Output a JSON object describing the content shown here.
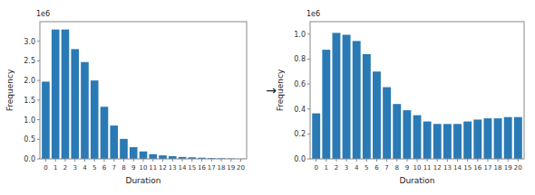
{
  "chart_data": [
    {
      "type": "bar",
      "xlabel": "Duration",
      "ylabel": "Frequency",
      "x": [
        0,
        1,
        2,
        3,
        4,
        5,
        6,
        7,
        8,
        9,
        10,
        11,
        12,
        13,
        14,
        15,
        16,
        17,
        18,
        19,
        20
      ],
      "values": [
        1.97,
        3.3,
        3.3,
        2.8,
        2.47,
        2.0,
        1.33,
        0.85,
        0.51,
        0.3,
        0.19,
        0.12,
        0.09,
        0.07,
        0.05,
        0.04,
        0.03,
        0.02,
        0.015,
        0.01,
        0.005
      ],
      "color": "#2a7ab5",
      "xlim": [
        -0.6,
        20.6
      ],
      "xticks": [
        0,
        1,
        2,
        3,
        4,
        5,
        6,
        7,
        8,
        9,
        10,
        11,
        12,
        13,
        14,
        15,
        16,
        17,
        18,
        19,
        20
      ],
      "ylim": [
        0,
        3.5
      ],
      "yticks": [
        {
          "value": 0.0,
          "label": "0.0"
        },
        0.5,
        {
          "value": 1.0,
          "label": "1.0"
        },
        1.5,
        {
          "value": 2.0,
          "label": "2.0"
        },
        2.5,
        {
          "value": 3.0,
          "label": "3.0"
        }
      ],
      "annotations": [
        "1e6"
      ],
      "grid": false
    },
    {
      "type": "bar",
      "xlabel": "Duration",
      "ylabel": "Frequency",
      "x": [
        0,
        1,
        2,
        3,
        4,
        5,
        6,
        7,
        8,
        9,
        10,
        11,
        12,
        13,
        14,
        15,
        16,
        17,
        18,
        19,
        20
      ],
      "values": [
        0.365,
        0.875,
        1.01,
        0.995,
        0.945,
        0.84,
        0.7,
        0.575,
        0.44,
        0.39,
        0.35,
        0.3,
        0.28,
        0.28,
        0.28,
        0.3,
        0.315,
        0.325,
        0.325,
        0.335,
        0.335
      ],
      "color": "#2a7ab5",
      "xlim": [
        -0.6,
        20.6
      ],
      "xticks": [
        0,
        1,
        2,
        3,
        4,
        5,
        6,
        7,
        8,
        9,
        10,
        11,
        12,
        13,
        14,
        15,
        16,
        17,
        18,
        19,
        20
      ],
      "ylim": [
        0,
        1.1
      ],
      "yticks": [
        {
          "value": 0.0,
          "label": "0.0"
        },
        0.2,
        0.4,
        0.6,
        0.8,
        {
          "value": 1.0,
          "label": "1.0"
        }
      ],
      "annotations": [
        "1e6"
      ],
      "grid": false
    }
  ],
  "annotation": "→"
}
